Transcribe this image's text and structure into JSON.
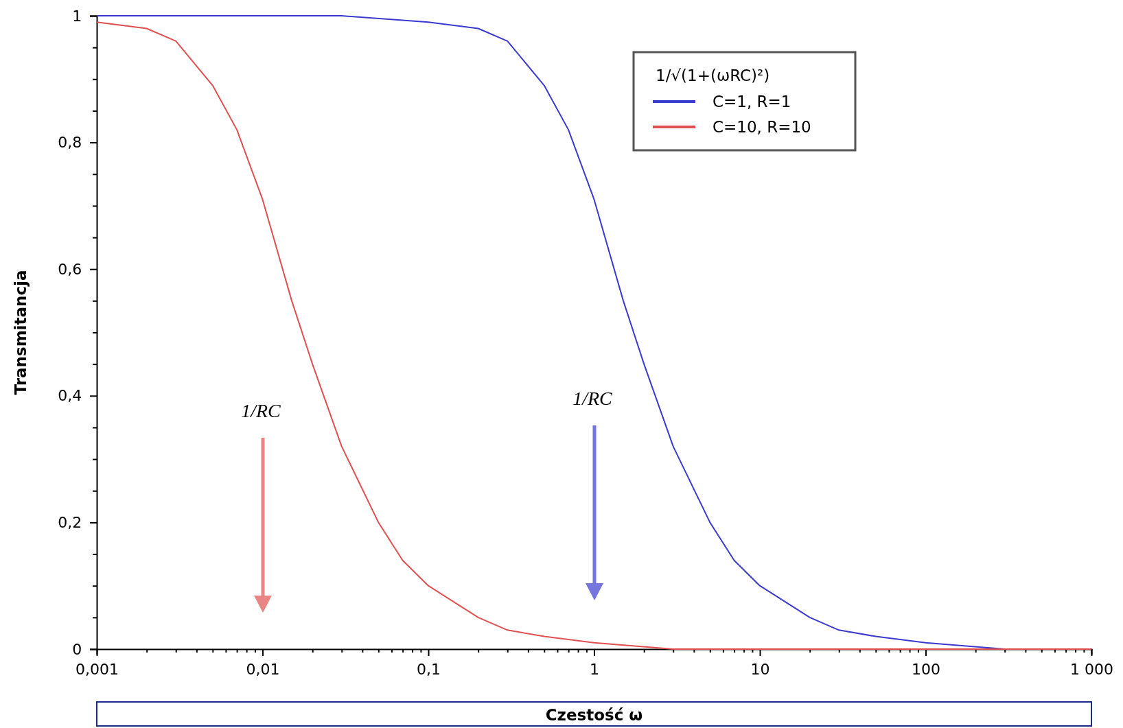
{
  "chart_data": {
    "type": "line",
    "xlabel": "Czestość ω",
    "ylabel": "Transmitancja",
    "legend_title": "1/√(1+(ωRC)²)",
    "legend": "top right",
    "log": "x",
    "grid": false,
    "marker": "none",
    "line_style": "solid",
    "xlim": [
      0.001,
      1000
    ],
    "ylim": [
      0,
      1
    ],
    "xticks": [
      {
        "value": 0.001,
        "label": "0,001"
      },
      {
        "value": 0.002,
        "label": null
      },
      {
        "value": 0.003,
        "label": null
      },
      {
        "value": 0.004,
        "label": null
      },
      {
        "value": 0.005,
        "label": null
      },
      {
        "value": 0.006,
        "label": null
      },
      {
        "value": 0.007,
        "label": null
      },
      {
        "value": 0.008,
        "label": null
      },
      {
        "value": 0.009,
        "label": null
      },
      {
        "value": 0.01,
        "label": "0,01"
      },
      {
        "value": 0.02,
        "label": null
      },
      {
        "value": 0.03,
        "label": null
      },
      {
        "value": 0.04,
        "label": null
      },
      {
        "value": 0.05,
        "label": null
      },
      {
        "value": 0.06,
        "label": null
      },
      {
        "value": 0.07,
        "label": null
      },
      {
        "value": 0.08,
        "label": null
      },
      {
        "value": 0.09,
        "label": null
      },
      {
        "value": 0.1,
        "label": "0,1"
      },
      {
        "value": 0.2,
        "label": null
      },
      {
        "value": 0.3,
        "label": null
      },
      {
        "value": 0.4,
        "label": null
      },
      {
        "value": 0.5,
        "label": null
      },
      {
        "value": 0.6,
        "label": null
      },
      {
        "value": 0.7,
        "label": null
      },
      {
        "value": 0.8,
        "label": null
      },
      {
        "value": 0.9,
        "label": null
      },
      1,
      {
        "value": 2,
        "label": null
      },
      {
        "value": 3,
        "label": null
      },
      {
        "value": 4,
        "label": null
      },
      {
        "value": 5,
        "label": null
      },
      {
        "value": 6,
        "label": null
      },
      {
        "value": 7,
        "label": null
      },
      {
        "value": 8,
        "label": null
      },
      {
        "value": 9,
        "label": null
      },
      10,
      {
        "value": 20,
        "label": null
      },
      {
        "value": 30,
        "label": null
      },
      {
        "value": 40,
        "label": null
      },
      {
        "value": 50,
        "label": null
      },
      {
        "value": 60,
        "label": null
      },
      {
        "value": 70,
        "label": null
      },
      {
        "value": 80,
        "label": null
      },
      {
        "value": 90,
        "label": null
      },
      100,
      {
        "value": 200,
        "label": null
      },
      {
        "value": 300,
        "label": null
      },
      {
        "value": 400,
        "label": null
      },
      {
        "value": 500,
        "label": null
      },
      {
        "value": 600,
        "label": null
      },
      {
        "value": 700,
        "label": null
      },
      {
        "value": 800,
        "label": null
      },
      {
        "value": 900,
        "label": null
      },
      {
        "value": 1000,
        "label": "1 000"
      }
    ],
    "yticks": [
      0,
      {
        "value": 0.05,
        "label": null
      },
      {
        "value": 0.1,
        "label": null
      },
      {
        "value": 0.15,
        "label": null
      },
      {
        "value": 0.2,
        "label": "0,2"
      },
      {
        "value": 0.25,
        "label": null
      },
      {
        "value": 0.3,
        "label": null
      },
      {
        "value": 0.35,
        "label": null
      },
      {
        "value": 0.4,
        "label": "0,4"
      },
      {
        "value": 0.45,
        "label": null
      },
      {
        "value": 0.5,
        "label": null
      },
      {
        "value": 0.55,
        "label": null
      },
      {
        "value": 0.6,
        "label": "0,6"
      },
      {
        "value": 0.65,
        "label": null
      },
      {
        "value": 0.7,
        "label": null
      },
      {
        "value": 0.75,
        "label": null
      },
      {
        "value": 0.8,
        "label": "0,8"
      },
      {
        "value": 0.85,
        "label": null
      },
      {
        "value": 0.9,
        "label": null
      },
      {
        "value": 0.95,
        "label": null
      },
      1
    ],
    "series": [
      {
        "name": "C=1, R=1",
        "color": "#3a3ad0",
        "x": [
          0.001,
          0.01,
          0.03,
          0.1,
          0.2,
          0.3,
          0.5,
          0.7,
          1,
          1.5,
          2,
          3,
          5,
          7,
          10,
          20,
          30,
          50,
          100,
          300,
          1000
        ],
        "values": [
          1,
          1,
          1,
          0.99,
          0.98,
          0.96,
          0.89,
          0.82,
          0.71,
          0.55,
          0.45,
          0.32,
          0.2,
          0.14,
          0.1,
          0.05,
          0.03,
          0.02,
          0.01,
          0,
          0
        ]
      },
      {
        "name": "C=10, R=10",
        "color": "#e05050",
        "x": [
          0.001,
          0.002,
          0.003,
          0.005,
          0.007,
          0.01,
          0.015,
          0.02,
          0.03,
          0.05,
          0.07,
          0.1,
          0.2,
          0.3,
          0.5,
          1,
          3,
          10,
          100,
          1000
        ],
        "values": [
          0.99,
          0.98,
          0.96,
          0.89,
          0.82,
          0.71,
          0.55,
          0.45,
          0.32,
          0.2,
          0.14,
          0.1,
          0.05,
          0.03,
          0.02,
          0.01,
          0,
          0,
          0,
          0
        ]
      }
    ],
    "annotations": [
      "1/RC",
      "1/RC"
    ]
  }
}
